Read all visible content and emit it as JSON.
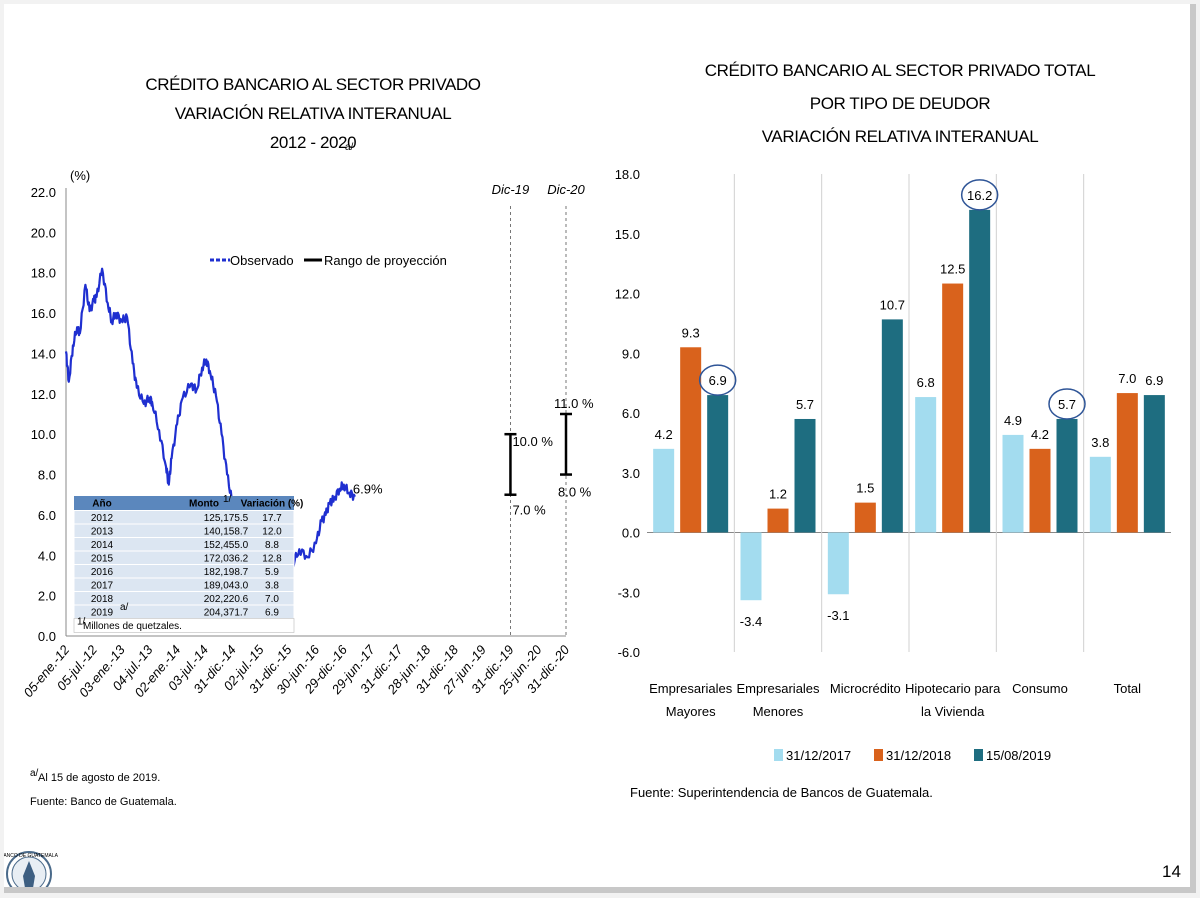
{
  "page_number": "14",
  "logo_text": "BANCO DE GUATEMALA",
  "colors": {
    "line": "#1f2fd0",
    "bar2017": "#a3dcef",
    "bar2018": "#d9621c",
    "bar2019": "#1e6d80",
    "table_header": "#5b87bd",
    "table_row": "#dce6f2",
    "circle": "#2f5597"
  },
  "chart_data": [
    {
      "type": "line",
      "title": [
        "CRÉDITO BANCARIO AL SECTOR PRIVADO",
        "VARIACIÓN RELATIVA INTERANUAL",
        "2012 - 2020"
      ],
      "title_sup": "a/",
      "ylabel": "(%)",
      "ylim": [
        0,
        22
      ],
      "yticks": [
        "22.0",
        "20.0",
        "18.0",
        "16.0",
        "14.0",
        "12.0",
        "10.0",
        "8.0",
        "6.0",
        "4.0",
        "2.0",
        "0.0"
      ],
      "xticks": [
        "05-ene.-12",
        "05-jul.-12",
        "03-ene.-13",
        "04-jul.-13",
        "02-ene.-14",
        "03-jul.-14",
        "31-dic.-14",
        "02-jul.-15",
        "31-dic.-15",
        "30-jun.-16",
        "29-dic.-16",
        "29-jun.-17",
        "31-dic.-17",
        "28-jun.-18",
        "31-dic.-18",
        "27-jun.-19",
        "31-dic.-19",
        "25-jun.-20",
        "31-dic.-20"
      ],
      "legend": [
        "Observado",
        "Rango de proyección"
      ],
      "observed": [
        [
          0,
          14.1
        ],
        [
          0.1,
          12.6
        ],
        [
          0.25,
          14.4
        ],
        [
          0.4,
          15.3
        ],
        [
          0.5,
          15.0
        ],
        [
          0.7,
          17.4
        ],
        [
          0.85,
          16.1
        ],
        [
          1.0,
          16.6
        ],
        [
          1.1,
          16.8
        ],
        [
          1.3,
          18.2
        ],
        [
          1.5,
          16.5
        ],
        [
          1.65,
          15.6
        ],
        [
          1.8,
          16.0
        ],
        [
          2.0,
          15.6
        ],
        [
          2.2,
          15.8
        ],
        [
          2.4,
          13.5
        ],
        [
          2.55,
          12.3
        ],
        [
          2.8,
          11.5
        ],
        [
          3.0,
          11.8
        ],
        [
          3.1,
          11.6
        ],
        [
          3.35,
          10.2
        ],
        [
          3.6,
          8.4
        ],
        [
          3.7,
          7.5
        ],
        [
          3.8,
          8.8
        ],
        [
          4.0,
          10.5
        ],
        [
          4.2,
          11.8
        ],
        [
          4.5,
          12.5
        ],
        [
          4.7,
          12.2
        ],
        [
          4.9,
          13.3
        ],
        [
          5.05,
          13.7
        ],
        [
          5.2,
          13.0
        ],
        [
          5.4,
          11.9
        ],
        [
          5.6,
          10.0
        ],
        [
          5.8,
          8.0
        ],
        [
          6.0,
          6.5
        ],
        [
          6.2,
          5.2
        ],
        [
          6.4,
          4.0
        ],
        [
          6.6,
          5.2
        ],
        [
          6.75,
          5.8
        ],
        [
          7.0,
          5.3
        ],
        [
          7.2,
          5.7
        ],
        [
          7.4,
          5.2
        ],
        [
          7.55,
          5.6
        ],
        [
          7.7,
          4.8
        ],
        [
          8.0,
          4.5
        ],
        [
          8.15,
          3.5
        ],
        [
          8.4,
          4.3
        ],
        [
          8.7,
          3.9
        ],
        [
          9.0,
          4.6
        ],
        [
          9.2,
          5.7
        ],
        [
          9.35,
          6.0
        ],
        [
          9.5,
          6.6
        ],
        [
          9.65,
          6.8
        ],
        [
          9.85,
          7.3
        ],
        [
          10.0,
          7.5
        ],
        [
          10.2,
          7.1
        ],
        [
          10.4,
          6.9
        ]
      ],
      "current_label": "6.9%",
      "projections": [
        {
          "label": "Dic-19",
          "low": 7.0,
          "high": 10.0,
          "low_label": "7.0 %",
          "high_label": "10.0 %"
        },
        {
          "label": "Dic-20",
          "low": 8.0,
          "high": 11.0,
          "low_label": "8.0 %",
          "high_label": "11.0 %"
        }
      ],
      "table": {
        "headers": [
          "Año",
          "Monto",
          "Variación (%)"
        ],
        "header_sup": "1/",
        "rows": [
          [
            "2012",
            "125,175.5",
            "17.7"
          ],
          [
            "2013",
            "140,158.7",
            "12.0"
          ],
          [
            "2014",
            "152,455.0",
            "8.8"
          ],
          [
            "2015",
            "172,036.2",
            "12.8"
          ],
          [
            "2016",
            "182,198.7",
            "5.9"
          ],
          [
            "2017",
            "189,043.0",
            "3.8"
          ],
          [
            "2018",
            "202,220.6",
            "7.0"
          ],
          [
            "2019",
            "204,371.7",
            "6.9"
          ]
        ],
        "last_row_sup": "a/",
        "note_sup": "1/",
        "note": "Millones de quetzales."
      },
      "footnote_sup": "a/",
      "footnote": "Al 15 de agosto de 2019.",
      "source": "Fuente:  Banco de Guatemala."
    },
    {
      "type": "bar",
      "title": [
        "CRÉDITO BANCARIO AL SECTOR PRIVADO TOTAL",
        "POR TIPO DE DEUDOR",
        "VARIACIÓN RELATIVA INTERANUAL"
      ],
      "ylim": [
        -6,
        18
      ],
      "yticks": [
        "18.0",
        "15.0",
        "12.0",
        "9.0",
        "6.0",
        "3.0",
        "0.0",
        "-3.0",
        "-6.0"
      ],
      "categories": [
        [
          "Empresariales",
          "Mayores"
        ],
        [
          "Empresariales",
          "Menores"
        ],
        [
          "Microcrédito"
        ],
        [
          "Hipotecario para",
          "la Vivienda"
        ],
        [
          "Consumo"
        ],
        [
          "Total"
        ]
      ],
      "series": [
        {
          "name": "31/12/2017",
          "values": [
            4.2,
            -3.4,
            -3.1,
            6.8,
            4.9,
            3.8
          ],
          "labels": [
            "4.2",
            "-3.4",
            "-3.1",
            "6.8",
            "4.9",
            "3.8"
          ]
        },
        {
          "name": "31/12/2018",
          "values": [
            9.3,
            1.2,
            1.5,
            12.5,
            4.2,
            7.0
          ],
          "labels": [
            "9.3",
            "1.2",
            "1.5",
            "12.5",
            "4.2",
            "7.0"
          ]
        },
        {
          "name": "15/08/2019",
          "values": [
            6.9,
            5.7,
            10.7,
            16.2,
            5.7,
            6.9
          ],
          "labels": [
            "6.9",
            "5.7",
            "10.7",
            "16.2",
            "5.7",
            "6.9"
          ]
        }
      ],
      "circled": [
        "6.9",
        "16.2",
        "5.7"
      ],
      "source": "Fuente: Superintendencia de Bancos de Guatemala."
    }
  ]
}
